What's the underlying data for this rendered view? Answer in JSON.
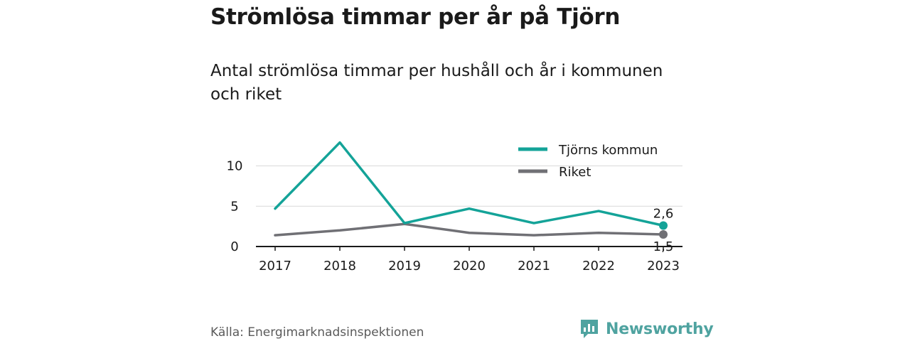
{
  "title": "Strömlösa timmar per år på Tjörn",
  "subtitle": "Antal strömlösa timmar per hushåll och år i kommunen och riket",
  "source": "Källa: Energimarknadsinspektionen",
  "brand": {
    "name": "Newsworthy",
    "icon": "bar-chart-bubble-icon",
    "color": "#4fa3a0"
  },
  "chart_data": {
    "type": "line",
    "x": [
      "2017",
      "2018",
      "2019",
      "2020",
      "2021",
      "2022",
      "2023"
    ],
    "ylim": [
      0,
      14
    ],
    "yticks": [
      0,
      5,
      10
    ],
    "grid": true,
    "legend_position": "top-right",
    "series": [
      {
        "name": "Tjörns kommun",
        "color": "#14a398",
        "values": [
          4.7,
          12.9,
          2.9,
          4.7,
          2.9,
          4.4,
          2.6
        ],
        "end_label": "2,6"
      },
      {
        "name": "Riket",
        "color": "#707075",
        "values": [
          1.4,
          2.0,
          2.8,
          1.7,
          1.4,
          1.7,
          1.5
        ],
        "end_label": "1,5"
      }
    ]
  }
}
